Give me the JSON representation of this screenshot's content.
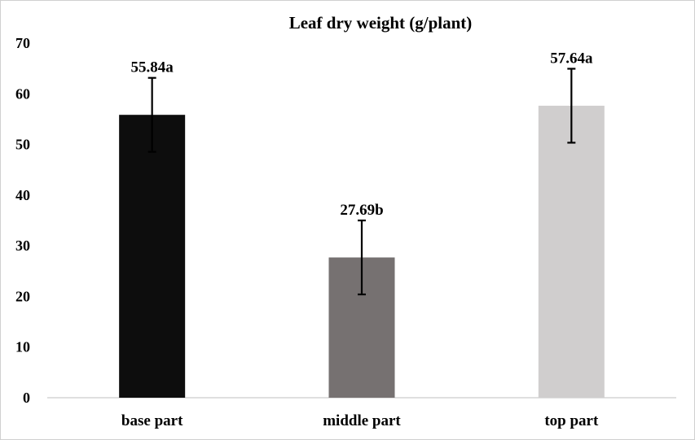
{
  "chart_data": {
    "type": "bar",
    "title": "Leaf dry weight (g/plant)",
    "xlabel": "",
    "ylabel": "",
    "categories": [
      "base part",
      "middle part",
      "top part"
    ],
    "values": [
      55.84,
      27.69,
      57.64
    ],
    "error": [
      7.3,
      7.3,
      7.3
    ],
    "data_labels": [
      "55.84a",
      "27.69b",
      "57.64a"
    ],
    "colors": [
      "#0d0d0d",
      "#767171",
      "#d0cece"
    ],
    "ylim": [
      0,
      70
    ],
    "yticks": [
      "0",
      "10",
      "20",
      "30",
      "40",
      "50",
      "60",
      "70"
    ],
    "grid": false,
    "legend": "none"
  }
}
